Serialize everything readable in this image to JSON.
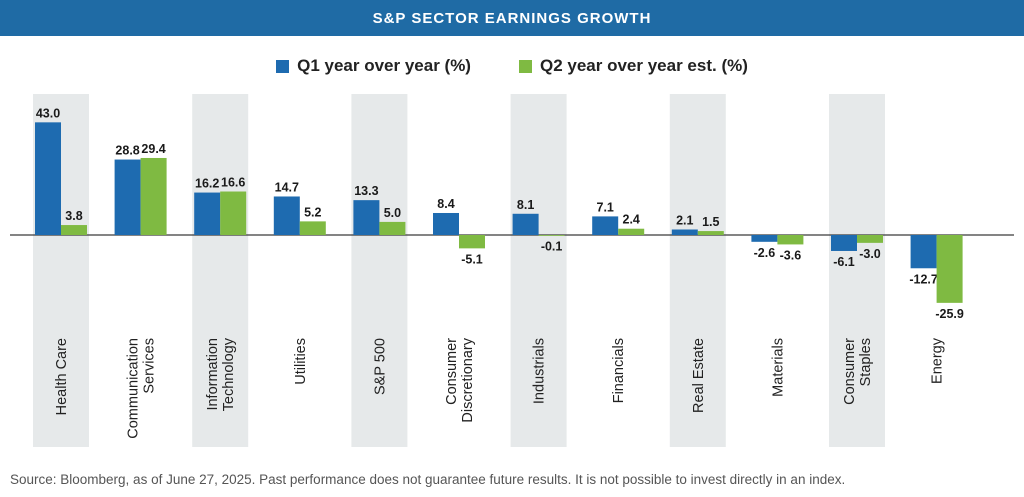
{
  "header": {
    "title": "S&P SECTOR EARNINGS GROWTH"
  },
  "legend": [
    {
      "label": "Q1 year over year (%)",
      "color": "#1e6bb0"
    },
    {
      "label": "Q2 year over year est. (%)",
      "color": "#7fba42"
    }
  ],
  "chart_data": {
    "type": "bar",
    "orientation": "vertical",
    "grid": false,
    "legend_position": "top-center",
    "categories": [
      [
        "Health Care"
      ],
      [
        "Communication",
        "Services"
      ],
      [
        "Information",
        "Technology"
      ],
      [
        "Utilities"
      ],
      [
        "S&P 500"
      ],
      [
        "Consumer",
        "Discretionary"
      ],
      [
        "Industrials"
      ],
      [
        "Financials"
      ],
      [
        "Real Estate"
      ],
      [
        "Materials"
      ],
      [
        "Consumer",
        "Staples"
      ],
      [
        "Energy"
      ]
    ],
    "series": [
      {
        "name": "Q1 year over year (%)",
        "color": "#1e6bb0",
        "values": [
          43.0,
          28.8,
          16.2,
          14.7,
          13.3,
          8.4,
          8.1,
          7.1,
          2.1,
          -2.6,
          -6.1,
          -12.7
        ],
        "labels": [
          "43.0",
          "28.8",
          "16.2",
          "14.7",
          "13.3",
          "8.4",
          "8.1",
          "7.1",
          "2.1",
          "-2.6",
          "-6.1",
          "-12.7"
        ]
      },
      {
        "name": "Q2 year over year est. (%)",
        "color": "#7fba42",
        "values": [
          3.8,
          29.4,
          16.6,
          5.2,
          5.0,
          -5.1,
          -0.1,
          2.4,
          1.5,
          -3.6,
          -3.0,
          -25.9
        ],
        "labels": [
          "3.8",
          "29.4",
          "16.6",
          "5.2",
          "5.0",
          "-5.1",
          "-0.1",
          "2.4",
          "1.5",
          "-3.6",
          "-3.0",
          "-25.9"
        ]
      }
    ],
    "ylim": [
      -30,
      45
    ],
    "shading_color": "#e6e9ea"
  },
  "footer": {
    "source": "Source: Bloomberg, as of June 27, 2025. Past performance does not guarantee future results. It is not possible to invest directly in an index."
  }
}
